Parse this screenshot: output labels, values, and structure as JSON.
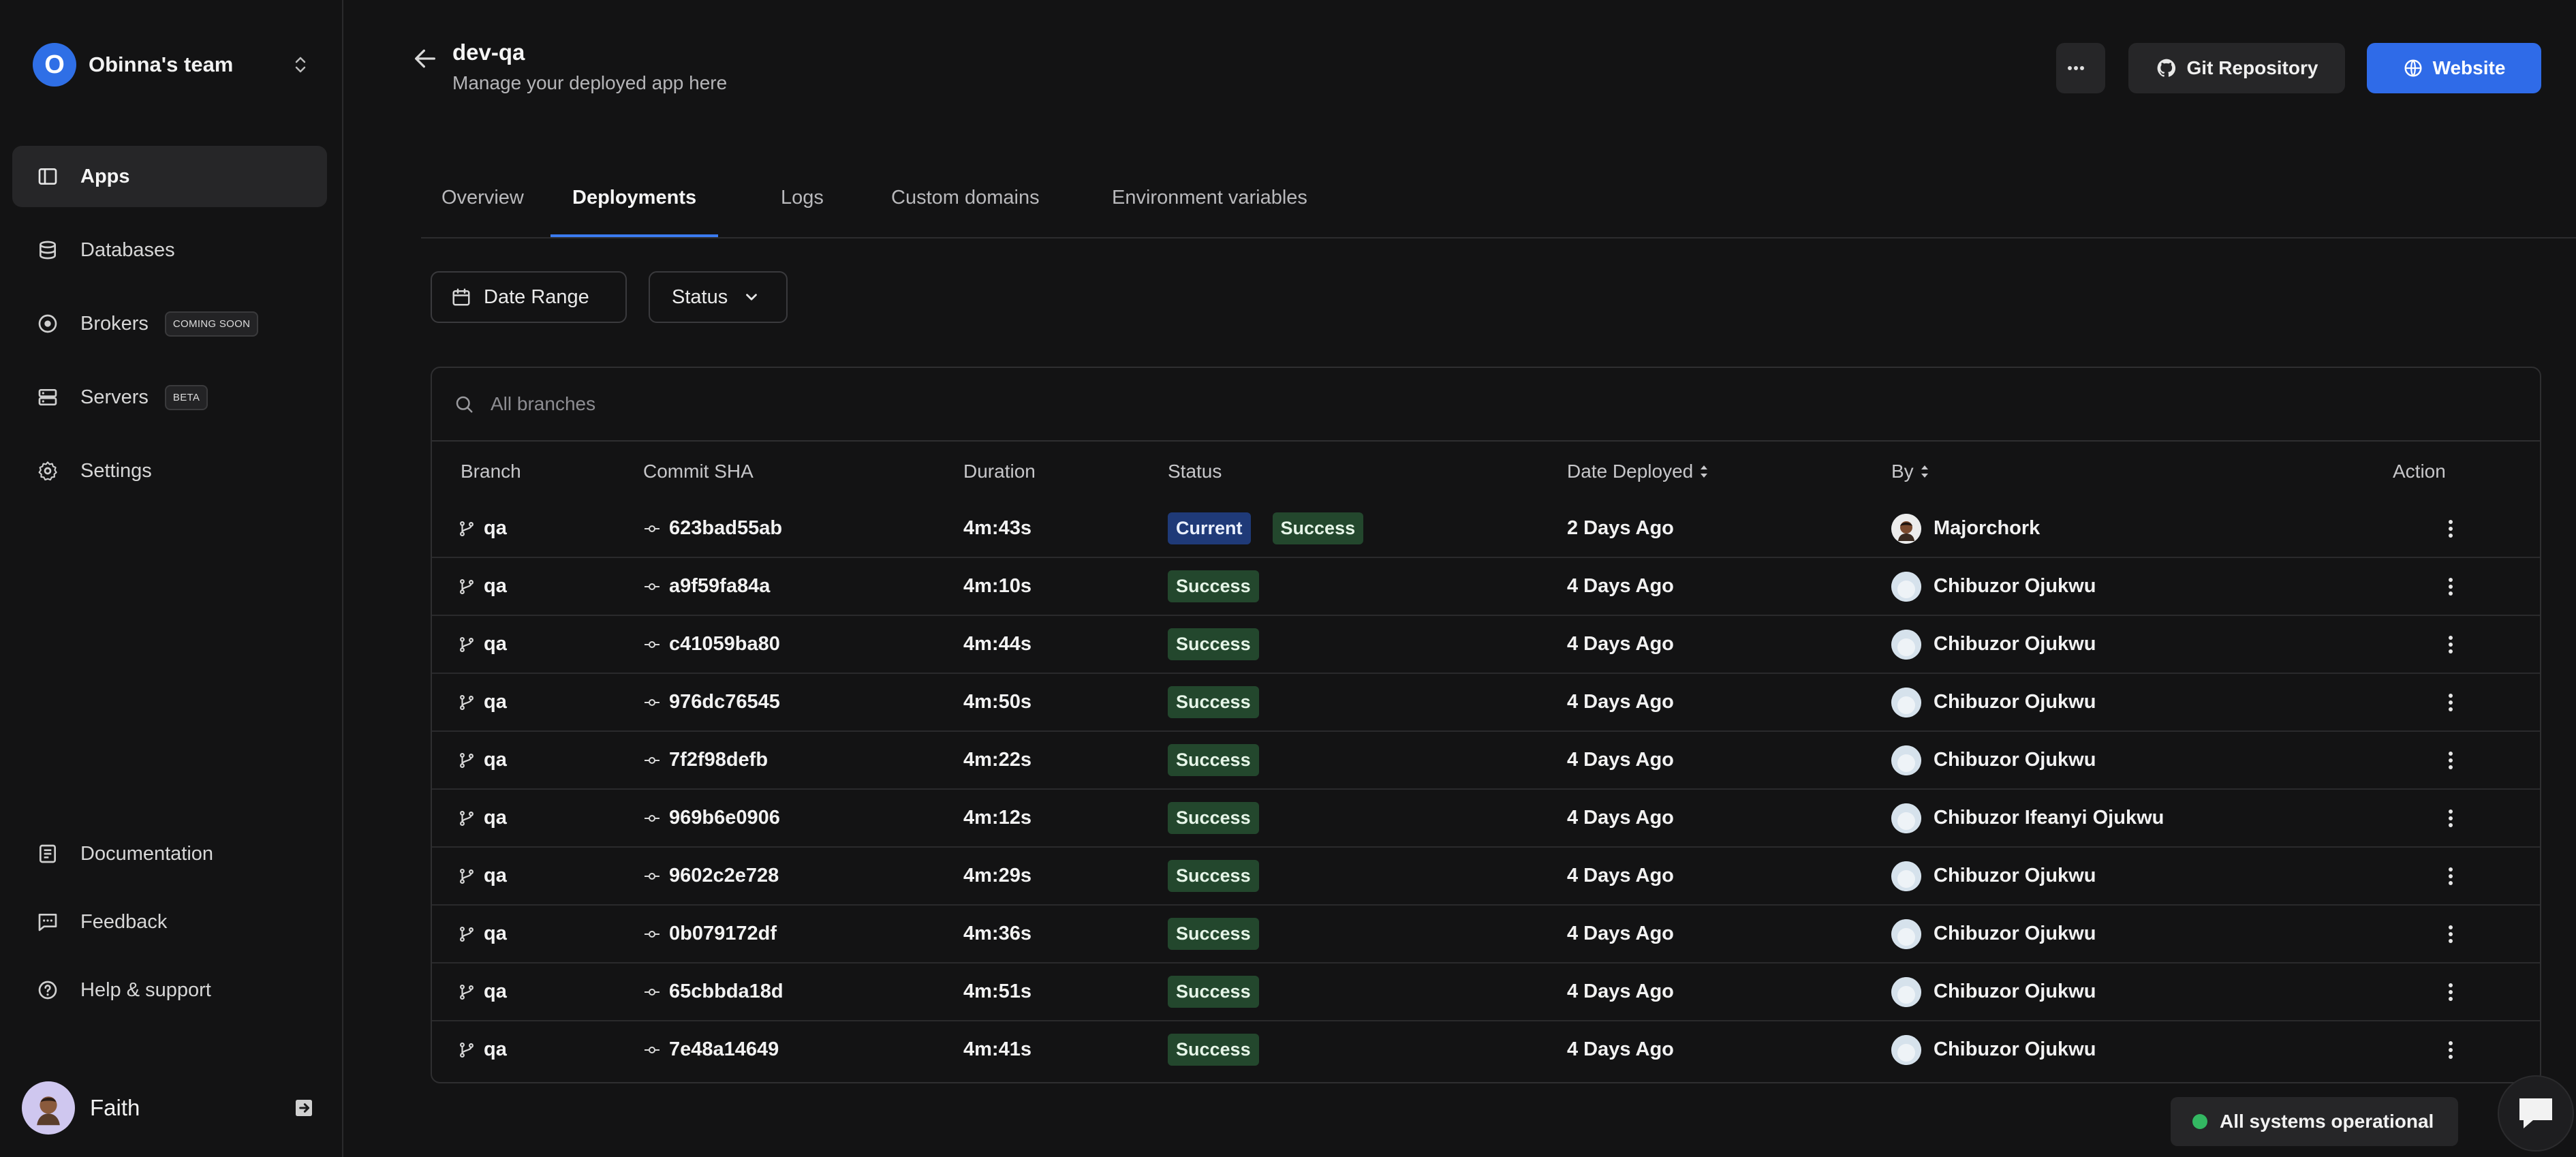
{
  "team": {
    "initial": "O",
    "name": "Obinna's team"
  },
  "nav": [
    {
      "label": "Apps",
      "icon": "apps-icon",
      "active": true
    },
    {
      "label": "Databases",
      "icon": "database-icon"
    },
    {
      "label": "Brokers",
      "icon": "broker-icon",
      "tag": "COMING SOON"
    },
    {
      "label": "Servers",
      "icon": "server-icon",
      "tag": "BETA"
    },
    {
      "label": "Settings",
      "icon": "gear-icon"
    }
  ],
  "bottom_nav": [
    {
      "label": "Documentation",
      "icon": "document-icon"
    },
    {
      "label": "Feedback",
      "icon": "feedback-icon"
    },
    {
      "label": "Help & support",
      "icon": "help-icon"
    }
  ],
  "user": {
    "name": "Faith"
  },
  "header": {
    "title": "dev-qa",
    "subtitle": "Manage your deployed app here"
  },
  "actions": {
    "more": "...",
    "git": "Git Repository",
    "website": "Website"
  },
  "tabs": [
    "Overview",
    "Deployments",
    "Logs",
    "Custom domains",
    "Environment variables"
  ],
  "active_tab": "Deployments",
  "filters": {
    "date": "Date Range",
    "status": "Status"
  },
  "search": {
    "placeholder": "All branches"
  },
  "columns": [
    "Branch",
    "Commit SHA",
    "Duration",
    "Status",
    "Date Deployed",
    "By",
    "Action"
  ],
  "rows": [
    {
      "branch": "qa",
      "sha": "623bad55ab",
      "duration": "4m:43s",
      "badges": [
        "Current",
        "Success"
      ],
      "date": "2 Days Ago",
      "by": "Majorchork"
    },
    {
      "branch": "qa",
      "sha": "a9f59fa84a",
      "duration": "4m:10s",
      "badges": [
        "Success"
      ],
      "date": "4 Days Ago",
      "by": "Chibuzor Ojukwu"
    },
    {
      "branch": "qa",
      "sha": "c41059ba80",
      "duration": "4m:44s",
      "badges": [
        "Success"
      ],
      "date": "4 Days Ago",
      "by": "Chibuzor Ojukwu"
    },
    {
      "branch": "qa",
      "sha": "976dc76545",
      "duration": "4m:50s",
      "badges": [
        "Success"
      ],
      "date": "4 Days Ago",
      "by": "Chibuzor Ojukwu"
    },
    {
      "branch": "qa",
      "sha": "7f2f98defb",
      "duration": "4m:22s",
      "badges": [
        "Success"
      ],
      "date": "4 Days Ago",
      "by": "Chibuzor Ojukwu"
    },
    {
      "branch": "qa",
      "sha": "969b6e0906",
      "duration": "4m:12s",
      "badges": [
        "Success"
      ],
      "date": "4 Days Ago",
      "by": "Chibuzor Ifeanyi Ojukwu"
    },
    {
      "branch": "qa",
      "sha": "9602c2e728",
      "duration": "4m:29s",
      "badges": [
        "Success"
      ],
      "date": "4 Days Ago",
      "by": "Chibuzor Ojukwu"
    },
    {
      "branch": "qa",
      "sha": "0b079172df",
      "duration": "4m:36s",
      "badges": [
        "Success"
      ],
      "date": "4 Days Ago",
      "by": "Chibuzor Ojukwu"
    },
    {
      "branch": "qa",
      "sha": "65cbbda18d",
      "duration": "4m:51s",
      "badges": [
        "Success"
      ],
      "date": "4 Days Ago",
      "by": "Chibuzor Ojukwu"
    },
    {
      "branch": "qa",
      "sha": "7e48a14649",
      "duration": "4m:41s",
      "badges": [
        "Success"
      ],
      "date": "4 Days Ago",
      "by": "Chibuzor Ojukwu"
    }
  ],
  "system_status": "All systems operational",
  "colors": {
    "accent": "#2f6be8",
    "success_bg": "#23472d",
    "current_bg": "#1f3a78",
    "status_dot": "#33b862"
  }
}
